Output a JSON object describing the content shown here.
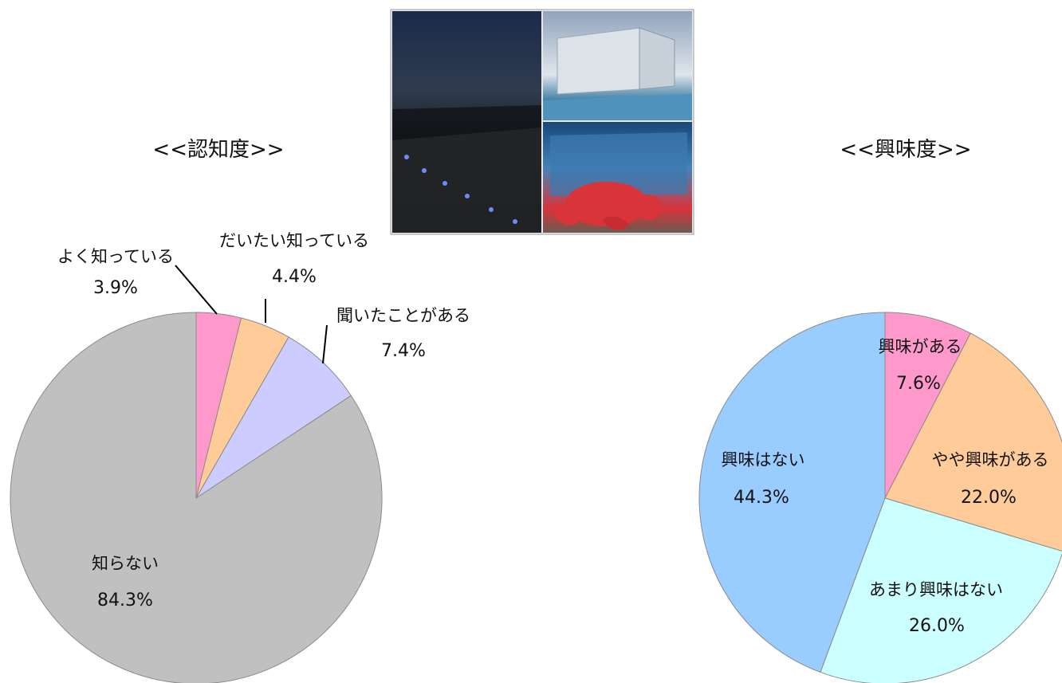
{
  "photo": {
    "panels": [
      {
        "name": "night-waterfront-photo",
        "colors": [
          "#1b2b48",
          "#303b4f",
          "#1c1d1e",
          "#0d0f12"
        ]
      },
      {
        "name": "building-exterior-photo",
        "colors": [
          "#8fa4bd",
          "#dfe5ea",
          "#3f7fa7",
          "#72a8c9"
        ]
      },
      {
        "name": "octopus-sculpture-photo",
        "colors": [
          "#19477a",
          "#4683b8",
          "#d8343a",
          "#6b5a4f"
        ]
      }
    ]
  },
  "chart_data": [
    {
      "type": "pie",
      "title": "<<認知度>>",
      "start_angle_deg": 0,
      "direction": "clockwise",
      "legend": "none",
      "slices": [
        {
          "label": "よく知っている",
          "value": 3.9,
          "value_label": "3.9%",
          "color": "#ff99cc"
        },
        {
          "label": "だいたい知っている",
          "value": 4.4,
          "value_label": "4.4%",
          "color": "#ffcc99"
        },
        {
          "label": "聞いたことがある",
          "value": 7.4,
          "value_label": "7.4%",
          "color": "#ccccff"
        },
        {
          "label": "知らない",
          "value": 84.3,
          "value_label": "84.3%",
          "color": "#c0c0c0"
        }
      ]
    },
    {
      "type": "pie",
      "title": "<<興味度>>",
      "start_angle_deg": 0,
      "direction": "clockwise",
      "legend": "none",
      "slices": [
        {
          "label": "興味がある",
          "value": 7.6,
          "value_label": "7.6%",
          "color": "#ff99cc"
        },
        {
          "label": "やや興味がある",
          "value": 22.0,
          "value_label": "22.0%",
          "color": "#ffcc99"
        },
        {
          "label": "あまり興味はない",
          "value": 26.0,
          "value_label": "26.0%",
          "color": "#ccffff"
        },
        {
          "label": "興味はない",
          "value": 44.3,
          "value_label": "44.3%",
          "color": "#99ccff"
        }
      ]
    }
  ]
}
